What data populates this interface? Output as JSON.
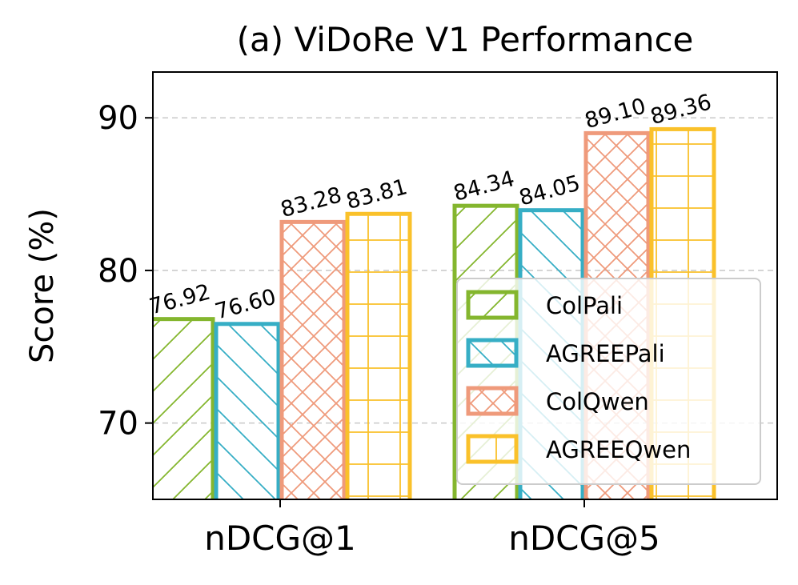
{
  "chart_data": {
    "type": "bar",
    "title": "(a) ViDoRe V1 Performance",
    "xlabel": "",
    "ylabel": "Score (%)",
    "categories": [
      "nDCG@1",
      "nDCG@5"
    ],
    "ylim": [
      65,
      93
    ],
    "yticks": [
      70,
      80,
      90
    ],
    "grid": "horizontal dashed",
    "legend_position": "lower-right",
    "series": [
      {
        "name": "ColPali",
        "values": [
          76.92,
          84.34
        ],
        "labels": [
          "76.92",
          "84.34"
        ],
        "color": "#84b62e",
        "hatch": "diagonal-forward"
      },
      {
        "name": "AGREEPali",
        "values": [
          76.6,
          84.05
        ],
        "labels": [
          "76.60",
          "84.05"
        ],
        "color": "#36aec5",
        "hatch": "diagonal-back"
      },
      {
        "name": "ColQwen",
        "values": [
          83.28,
          89.1
        ],
        "labels": [
          "83.28",
          "89.10"
        ],
        "color": "#ef9a7b",
        "hatch": "crosshatch"
      },
      {
        "name": "AGREEQwen",
        "values": [
          83.81,
          89.36
        ],
        "labels": [
          "83.81",
          "89.36"
        ],
        "color": "#fac12a",
        "hatch": "grid"
      }
    ]
  }
}
